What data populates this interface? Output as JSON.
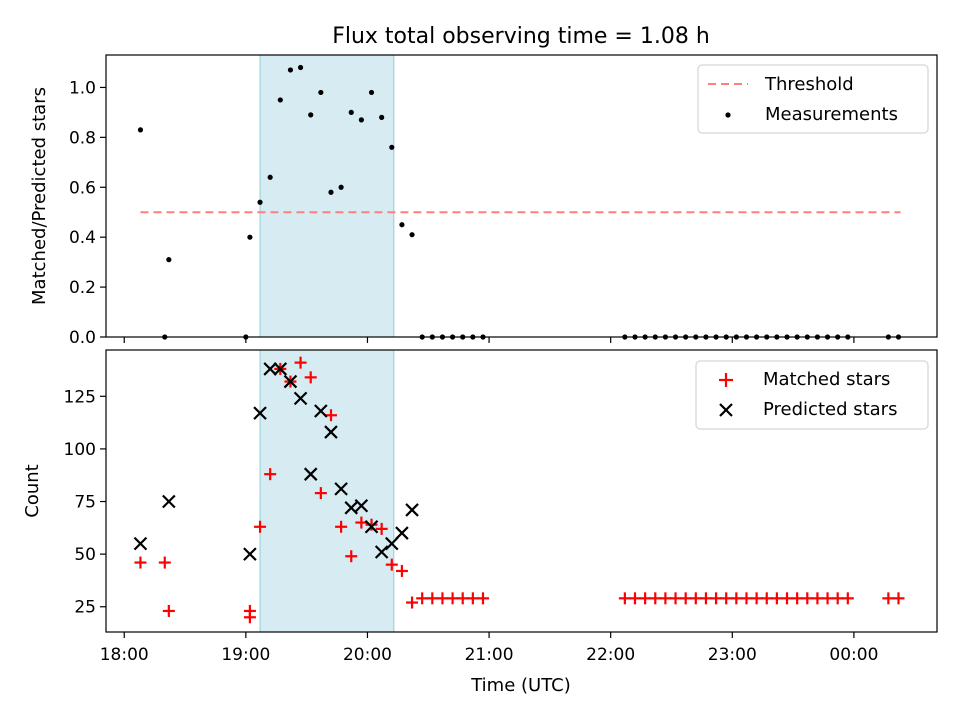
{
  "chart_data": [
    {
      "type": "scatter",
      "title": "Flux total observing time = 1.08 h",
      "xlabel": "",
      "ylabel": "Matched/Predicted stars",
      "xlim": [
        "17:51",
        "00:41"
      ],
      "ylim": [
        0,
        1.13
      ],
      "yticks": [
        "0.0",
        "0.2",
        "0.4",
        "0.6",
        "0.8",
        "1.0"
      ],
      "legend": {
        "position": "top-right",
        "entries": [
          "Threshold",
          "Measurements"
        ]
      },
      "shaded_span": {
        "start": "19:07",
        "end": "20:13"
      },
      "series": [
        {
          "name": "Threshold",
          "style": "dashed-line",
          "color": "#ff7f7f",
          "x": [
            "18:08",
            "00:23"
          ],
          "y": [
            0.5,
            0.5
          ]
        },
        {
          "name": "Measurements",
          "style": "dot",
          "color": "#000000",
          "x": [
            "18:08",
            "18:20",
            "18:22",
            "19:00",
            "19:02",
            "19:07",
            "19:12",
            "19:17",
            "19:22",
            "19:27",
            "19:32",
            "19:37",
            "19:42",
            "19:47",
            "19:52",
            "19:57",
            "20:02",
            "20:07",
            "20:12",
            "20:17",
            "20:22",
            "20:27",
            "20:32",
            "20:37",
            "20:42",
            "20:47",
            "20:52",
            "20:57",
            "22:07",
            "22:12",
            "22:17",
            "22:22",
            "22:27",
            "22:32",
            "22:37",
            "22:42",
            "22:47",
            "22:52",
            "22:57",
            "23:02",
            "23:07",
            "23:12",
            "23:17",
            "23:22",
            "23:27",
            "23:32",
            "23:37",
            "23:42",
            "23:47",
            "23:52",
            "23:57",
            "00:17",
            "00:22"
          ],
          "y": [
            0.83,
            0.0,
            0.31,
            0.0,
            0.4,
            0.54,
            0.64,
            0.95,
            1.07,
            1.08,
            0.89,
            0.98,
            0.58,
            0.6,
            0.9,
            0.87,
            0.98,
            0.88,
            0.76,
            0.45,
            0.41,
            0.0,
            0.0,
            0.0,
            0.0,
            0.0,
            0.0,
            0.0,
            0.0,
            0.0,
            0.0,
            0.0,
            0.0,
            0.0,
            0.0,
            0.0,
            0.0,
            0.0,
            0.0,
            0.0,
            0.0,
            0.0,
            0.0,
            0.0,
            0.0,
            0.0,
            0.0,
            0.0,
            0.0,
            0.0,
            0.0,
            0.0,
            0.0
          ]
        }
      ]
    },
    {
      "type": "scatter",
      "title": "",
      "xlabel": "Time (UTC)",
      "ylabel": "Count",
      "xlim": [
        "17:51",
        "00:41"
      ],
      "ylim": [
        13,
        147
      ],
      "xticks": [
        "18:00",
        "19:00",
        "20:00",
        "21:00",
        "22:00",
        "23:00",
        "00:00"
      ],
      "yticks": [
        "25",
        "50",
        "75",
        "100",
        "125"
      ],
      "legend": {
        "position": "top-right",
        "entries": [
          "Matched stars",
          "Predicted stars"
        ]
      },
      "shaded_span": {
        "start": "19:07",
        "end": "20:13"
      },
      "series": [
        {
          "name": "Matched stars",
          "marker": "plus",
          "color": "#ff0000",
          "x": [
            "18:08",
            "18:20",
            "18:22",
            "19:02",
            "19:02",
            "19:07",
            "19:12",
            "19:17",
            "19:22",
            "19:27",
            "19:32",
            "19:37",
            "19:42",
            "19:47",
            "19:52",
            "19:57",
            "20:02",
            "20:07",
            "20:12",
            "20:17",
            "20:22",
            "20:27",
            "20:32",
            "20:37",
            "20:42",
            "20:47",
            "20:52",
            "20:57",
            "22:07",
            "22:12",
            "22:17",
            "22:22",
            "22:27",
            "22:32",
            "22:37",
            "22:42",
            "22:47",
            "22:52",
            "22:57",
            "23:02",
            "23:07",
            "23:12",
            "23:17",
            "23:22",
            "23:27",
            "23:32",
            "23:37",
            "23:42",
            "23:47",
            "23:52",
            "23:57",
            "00:17",
            "00:22"
          ],
          "y": [
            46,
            46,
            23,
            23,
            20,
            63,
            88,
            138,
            132,
            141,
            134,
            79,
            116,
            63,
            49,
            65,
            64,
            62,
            45,
            42,
            27,
            29,
            29,
            29,
            29,
            29,
            29,
            29,
            29,
            29,
            29,
            29,
            29,
            29,
            29,
            29,
            29,
            29,
            29,
            29,
            29,
            29,
            29,
            29,
            29,
            29,
            29,
            29,
            29,
            29,
            29,
            29,
            29
          ]
        },
        {
          "name": "Predicted stars",
          "marker": "x",
          "color": "#000000",
          "x": [
            "18:08",
            "18:22",
            "19:02",
            "19:07",
            "19:12",
            "19:17",
            "19:22",
            "19:27",
            "19:32",
            "19:37",
            "19:42",
            "19:47",
            "19:52",
            "19:57",
            "20:02",
            "20:07",
            "20:12",
            "20:17",
            "20:22"
          ],
          "y": [
            55,
            75,
            50,
            117,
            138,
            138,
            132,
            124,
            88,
            118,
            108,
            81,
            72,
            73,
            63,
            51,
            55,
            60,
            71
          ]
        }
      ]
    }
  ]
}
